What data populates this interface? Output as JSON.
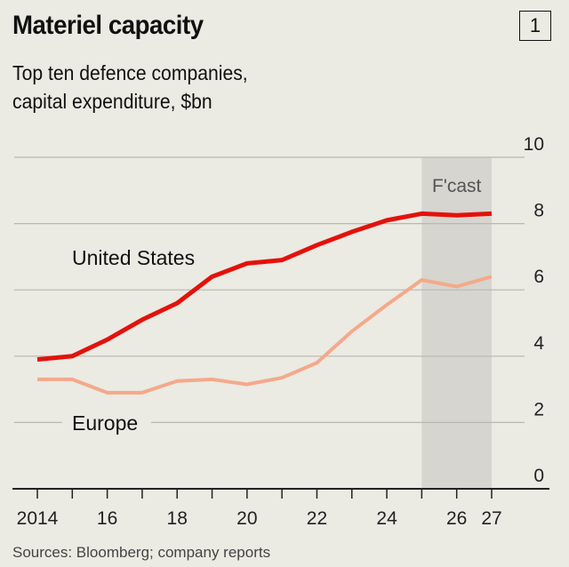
{
  "title": "Materiel capacity",
  "chart_number": "1",
  "subtitle_lines": [
    "Top ten defence companies,",
    "capital expenditure, $bn"
  ],
  "source": "Sources: Bloomberg; company reports",
  "chart_data": {
    "type": "line",
    "title": "Materiel capacity",
    "subtitle": "Top ten defence companies, capital expenditure, $bn",
    "x": [
      2014,
      2015,
      2016,
      2017,
      2018,
      2019,
      2020,
      2021,
      2022,
      2023,
      2024,
      2025,
      2026,
      2027
    ],
    "x_tick_values": [
      2014,
      2016,
      2018,
      2020,
      2022,
      2024,
      2026,
      2027
    ],
    "x_tick_labels": [
      "2014",
      "16",
      "18",
      "20",
      "22",
      "24",
      "26",
      "27"
    ],
    "y_ticks": [
      0,
      2,
      4,
      6,
      8,
      10
    ],
    "ylim": [
      0,
      10
    ],
    "y_axis_side": "right",
    "grid": true,
    "forecast_region": {
      "label": "F'cast",
      "from": 2025,
      "to": 2027,
      "color": "#d6d5cf"
    },
    "series": [
      {
        "name": "United States",
        "color": "#e3120b",
        "values": [
          3.9,
          4.0,
          4.5,
          5.1,
          5.6,
          6.4,
          6.8,
          6.9,
          7.35,
          7.75,
          8.1,
          8.3,
          8.25,
          8.3
        ]
      },
      {
        "name": "Europe",
        "color": "#f4a98a",
        "values": [
          3.3,
          3.3,
          2.9,
          2.9,
          3.25,
          3.3,
          3.15,
          3.35,
          3.8,
          4.75,
          5.55,
          6.3,
          6.1,
          6.4
        ]
      }
    ]
  }
}
